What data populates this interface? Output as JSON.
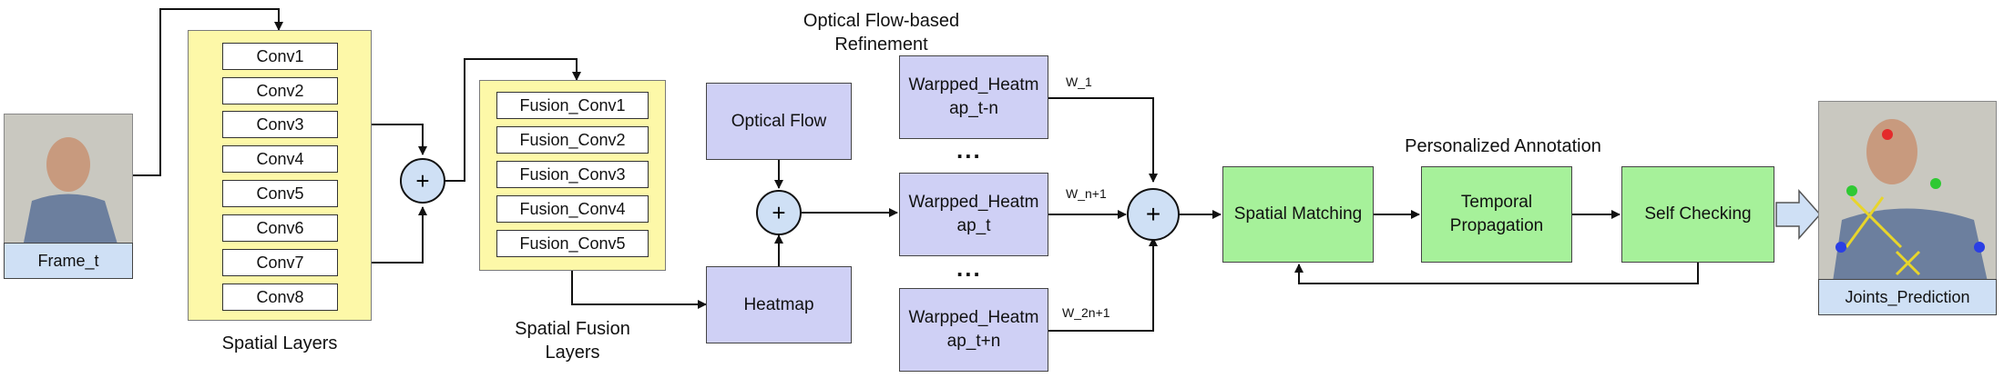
{
  "input": {
    "frame_label": "Frame_t"
  },
  "spatial_layers": {
    "caption": "Spatial Layers",
    "layers": [
      "Conv1",
      "Conv2",
      "Conv3",
      "Conv4",
      "Conv5",
      "Conv6",
      "Conv7",
      "Conv8"
    ]
  },
  "spatial_fusion_layers": {
    "caption_line1": "Spatial Fusion",
    "caption_line2": "Layers",
    "layers": [
      "Fusion_Conv1",
      "Fusion_Conv2",
      "Fusion_Conv3",
      "Fusion_Conv4",
      "Fusion_Conv5"
    ]
  },
  "flow": {
    "optical_flow": "Optical Flow",
    "heatmap": "Heatmap",
    "refinement_title_line1": "Optical Flow-based",
    "refinement_title_line2": "Refinement",
    "warped": [
      {
        "line1": "Warpped_Heatm",
        "line2": "ap_t-n",
        "weight": "W_1"
      },
      {
        "line1": "Warpped_Heatm",
        "line2": "ap_t",
        "weight": "W_n+1"
      },
      {
        "line1": "Warpped_Heatm",
        "line2": "ap_t+n",
        "weight": "W_2n+1"
      }
    ],
    "ellipsis": "..."
  },
  "sum_symbol": "+",
  "personalized_annotation": {
    "title": "Personalized Annotation",
    "spatial_matching": "Spatial Matching",
    "temporal_line1": "Temporal",
    "temporal_line2": "Propagation",
    "self_checking": "Self Checking"
  },
  "output": {
    "label": "Joints_Prediction"
  },
  "colors": {
    "yellow_panel": "#fdf8a8",
    "lavender_box": "#cfd0f5",
    "green_box": "#a6f19a",
    "sum_circle": "#cfe0f5",
    "label_blue": "#cfe0f5"
  }
}
